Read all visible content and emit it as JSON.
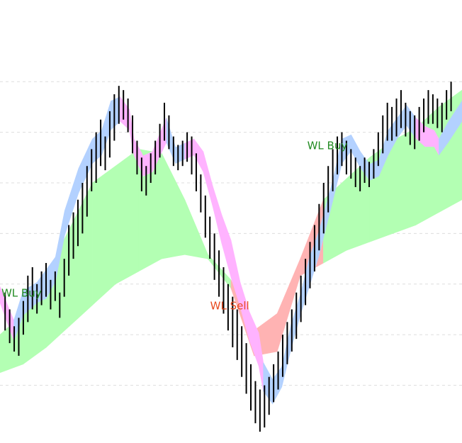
{
  "chart_data": {
    "type": "line",
    "title": "",
    "xlabel": "",
    "ylabel": "",
    "grid": "horizontal dashed",
    "x_range": [
      0,
      100
    ],
    "ylim": [
      0,
      100
    ],
    "colors": {
      "cloud_bull": "#b3ffb3",
      "cloud_bear": "#ffb3b3",
      "ribbon_bull": "#b3d1ff",
      "ribbon_bear": "#ffb3ff",
      "bars": "#000000",
      "buy_label": "#228B22",
      "sell_label": "#E8491D"
    },
    "cloud": {
      "x": [
        0,
        5,
        10,
        15,
        20,
        25,
        30,
        35,
        40,
        45,
        50,
        55,
        60,
        65,
        70,
        75,
        80,
        85,
        90,
        95,
        100
      ],
      "upper": [
        24,
        29,
        38,
        49,
        60,
        64,
        68,
        67,
        56,
        43,
        37,
        25,
        29,
        42,
        56,
        61,
        66,
        70,
        73,
        78,
        82
      ],
      "lower": [
        15,
        17,
        21,
        26,
        31,
        36,
        39,
        42,
        43,
        42,
        35,
        19,
        20,
        38,
        41,
        44,
        46,
        48,
        50,
        53,
        56
      ]
    },
    "ribbon": {
      "x": [
        0,
        3,
        5,
        8,
        10,
        12,
        14,
        17,
        20,
        22,
        24,
        26,
        28,
        29,
        31,
        33,
        36,
        38,
        40,
        42,
        44,
        46,
        48,
        50,
        52,
        54,
        56,
        57,
        59,
        61,
        63,
        65,
        67,
        69,
        72,
        74,
        76,
        78,
        80,
        82,
        84,
        86,
        88,
        90,
        92,
        94,
        95,
        97,
        100
      ],
      "upper": [
        34,
        26,
        33,
        35,
        38,
        41,
        52,
        62,
        69,
        71,
        78,
        79,
        76,
        69,
        65,
        66,
        74,
        67,
        68,
        69,
        66,
        58,
        51,
        45,
        35,
        28,
        23,
        16,
        12,
        15,
        25,
        32,
        41,
        47,
        59,
        69,
        70,
        66,
        63,
        64,
        71,
        74,
        77,
        74,
        72,
        71,
        69,
        73,
        78
      ],
      "lower": [
        33,
        24,
        30,
        33,
        34,
        38,
        49,
        59,
        66,
        68,
        74,
        76,
        74,
        68,
        63,
        64,
        71,
        66,
        67,
        68,
        64,
        56,
        47,
        39,
        32,
        24,
        18,
        12,
        9,
        13,
        22,
        30,
        37,
        44,
        57,
        66,
        69,
        65,
        62,
        63,
        68,
        72,
        75,
        72,
        70,
        70,
        68,
        71,
        76
      ],
      "regimes": [
        {
          "from": 0,
          "to": 2,
          "trend": "bear"
        },
        {
          "from": 2,
          "to": 4,
          "trend": "bull"
        },
        {
          "from": 4,
          "to": 26,
          "trend": "bull"
        },
        {
          "from": 26,
          "to": 36,
          "trend": "bear"
        },
        {
          "from": 36,
          "to": 40,
          "trend": "bull"
        },
        {
          "from": 40,
          "to": 58,
          "trend": "bear"
        },
        {
          "from": 58,
          "to": 90,
          "trend": "bull"
        },
        {
          "from": 90,
          "to": 95,
          "trend": "bear"
        },
        {
          "from": 95,
          "to": 100,
          "trend": "bull"
        }
      ]
    },
    "price_bars": [
      {
        "x": 0.5,
        "high": 34,
        "low": 25
      },
      {
        "x": 1.5,
        "high": 30,
        "low": 22
      },
      {
        "x": 2.5,
        "high": 26,
        "low": 20
      },
      {
        "x": 3.5,
        "high": 28,
        "low": 19
      },
      {
        "x": 4.5,
        "high": 32,
        "low": 24
      },
      {
        "x": 5.5,
        "high": 38,
        "low": 27
      },
      {
        "x": 6.5,
        "high": 40,
        "low": 30
      },
      {
        "x": 7.5,
        "high": 36,
        "low": 29
      },
      {
        "x": 8.5,
        "high": 39,
        "low": 31
      },
      {
        "x": 9.5,
        "high": 41,
        "low": 33
      },
      {
        "x": 10.5,
        "high": 37,
        "low": 30
      },
      {
        "x": 11.5,
        "high": 39,
        "low": 32
      },
      {
        "x": 12.5,
        "high": 34,
        "low": 28
      },
      {
        "x": 13.5,
        "high": 42,
        "low": 33
      },
      {
        "x": 14.5,
        "high": 50,
        "low": 38
      },
      {
        "x": 15.5,
        "high": 53,
        "low": 42
      },
      {
        "x": 16.5,
        "high": 56,
        "low": 45
      },
      {
        "x": 17.5,
        "high": 60,
        "low": 48
      },
      {
        "x": 18.5,
        "high": 64,
        "low": 52
      },
      {
        "x": 19.5,
        "high": 68,
        "low": 58
      },
      {
        "x": 20.5,
        "high": 72,
        "low": 60
      },
      {
        "x": 21.5,
        "high": 75,
        "low": 64
      },
      {
        "x": 22.5,
        "high": 71,
        "low": 63
      },
      {
        "x": 23.5,
        "high": 77,
        "low": 66
      },
      {
        "x": 24.5,
        "high": 81,
        "low": 70
      },
      {
        "x": 25.5,
        "high": 83,
        "low": 74
      },
      {
        "x": 26.5,
        "high": 82,
        "low": 75
      },
      {
        "x": 27.5,
        "high": 80,
        "low": 72
      },
      {
        "x": 28.5,
        "high": 76,
        "low": 67
      },
      {
        "x": 29.5,
        "high": 70,
        "low": 62
      },
      {
        "x": 30.5,
        "high": 66,
        "low": 58
      },
      {
        "x": 31.5,
        "high": 64,
        "low": 57
      },
      {
        "x": 32.5,
        "high": 67,
        "low": 60
      },
      {
        "x": 33.5,
        "high": 70,
        "low": 62
      },
      {
        "x": 34.5,
        "high": 74,
        "low": 66
      },
      {
        "x": 35.5,
        "high": 79,
        "low": 70
      },
      {
        "x": 36.5,
        "high": 76,
        "low": 68
      },
      {
        "x": 37.5,
        "high": 71,
        "low": 64
      },
      {
        "x": 38.5,
        "high": 69,
        "low": 63
      },
      {
        "x": 39.5,
        "high": 70,
        "low": 64
      },
      {
        "x": 40.5,
        "high": 72,
        "low": 65
      },
      {
        "x": 41.5,
        "high": 71,
        "low": 62
      },
      {
        "x": 42.5,
        "high": 67,
        "low": 58
      },
      {
        "x": 43.5,
        "high": 62,
        "low": 53
      },
      {
        "x": 44.5,
        "high": 57,
        "low": 47
      },
      {
        "x": 45.5,
        "high": 52,
        "low": 42
      },
      {
        "x": 46.5,
        "high": 48,
        "low": 37
      },
      {
        "x": 47.5,
        "high": 44,
        "low": 33
      },
      {
        "x": 48.5,
        "high": 40,
        "low": 29
      },
      {
        "x": 49.5,
        "high": 36,
        "low": 25
      },
      {
        "x": 50.5,
        "high": 33,
        "low": 21
      },
      {
        "x": 51.5,
        "high": 30,
        "low": 18
      },
      {
        "x": 52.5,
        "high": 26,
        "low": 14
      },
      {
        "x": 53.5,
        "high": 22,
        "low": 10
      },
      {
        "x": 54.5,
        "high": 17,
        "low": 6
      },
      {
        "x": 55.5,
        "high": 13,
        "low": 3
      },
      {
        "x": 56.5,
        "high": 11,
        "low": 1
      },
      {
        "x": 57.5,
        "high": 12,
        "low": 2
      },
      {
        "x": 58.5,
        "high": 14,
        "low": 5
      },
      {
        "x": 59.5,
        "high": 17,
        "low": 8
      },
      {
        "x": 60.5,
        "high": 20,
        "low": 11
      },
      {
        "x": 61.5,
        "high": 24,
        "low": 14
      },
      {
        "x": 62.5,
        "high": 27,
        "low": 17
      },
      {
        "x": 63.5,
        "high": 30,
        "low": 20
      },
      {
        "x": 64.5,
        "high": 34,
        "low": 23
      },
      {
        "x": 65.5,
        "high": 38,
        "low": 27
      },
      {
        "x": 66.5,
        "high": 42,
        "low": 31
      },
      {
        "x": 67.5,
        "high": 46,
        "low": 35
      },
      {
        "x": 68.5,
        "high": 50,
        "low": 39
      },
      {
        "x": 69.5,
        "high": 55,
        "low": 44
      },
      {
        "x": 70.5,
        "high": 60,
        "low": 48
      },
      {
        "x": 71.5,
        "high": 64,
        "low": 53
      },
      {
        "x": 72.5,
        "high": 68,
        "low": 58
      },
      {
        "x": 73.5,
        "high": 71,
        "low": 62
      },
      {
        "x": 74.5,
        "high": 72,
        "low": 64
      },
      {
        "x": 75.5,
        "high": 70,
        "low": 62
      },
      {
        "x": 76.5,
        "high": 68,
        "low": 61
      },
      {
        "x": 77.5,
        "high": 66,
        "low": 59
      },
      {
        "x": 78.5,
        "high": 64,
        "low": 58
      },
      {
        "x": 79.5,
        "high": 66,
        "low": 60
      },
      {
        "x": 80.5,
        "high": 65,
        "low": 59
      },
      {
        "x": 81.5,
        "high": 68,
        "low": 61
      },
      {
        "x": 82.5,
        "high": 72,
        "low": 64
      },
      {
        "x": 83.5,
        "high": 76,
        "low": 67
      },
      {
        "x": 84.5,
        "high": 79,
        "low": 70
      },
      {
        "x": 85.5,
        "high": 78,
        "low": 70
      },
      {
        "x": 86.5,
        "high": 80,
        "low": 71
      },
      {
        "x": 87.5,
        "high": 82,
        "low": 73
      },
      {
        "x": 88.5,
        "high": 79,
        "low": 71
      },
      {
        "x": 89.5,
        "high": 77,
        "low": 69
      },
      {
        "x": 90.5,
        "high": 76,
        "low": 68
      },
      {
        "x": 91.5,
        "high": 78,
        "low": 70
      },
      {
        "x": 92.5,
        "high": 80,
        "low": 72
      },
      {
        "x": 93.5,
        "high": 82,
        "low": 74
      },
      {
        "x": 94.5,
        "high": 81,
        "low": 74
      },
      {
        "x": 95.5,
        "high": 80,
        "low": 73
      },
      {
        "x": 96.5,
        "high": 79,
        "low": 72
      },
      {
        "x": 97.5,
        "high": 82,
        "low": 75
      },
      {
        "x": 98.5,
        "high": 84,
        "low": 77
      }
    ],
    "annotations": [
      {
        "text": "WL Buy",
        "x": 0.3,
        "y": 33,
        "kind": "buy"
      },
      {
        "text": "WL Sell",
        "x": 45.5,
        "y": 30,
        "kind": "sell"
      },
      {
        "text": "WL Buy",
        "x": 66.5,
        "y": 68,
        "kind": "buy"
      }
    ]
  }
}
